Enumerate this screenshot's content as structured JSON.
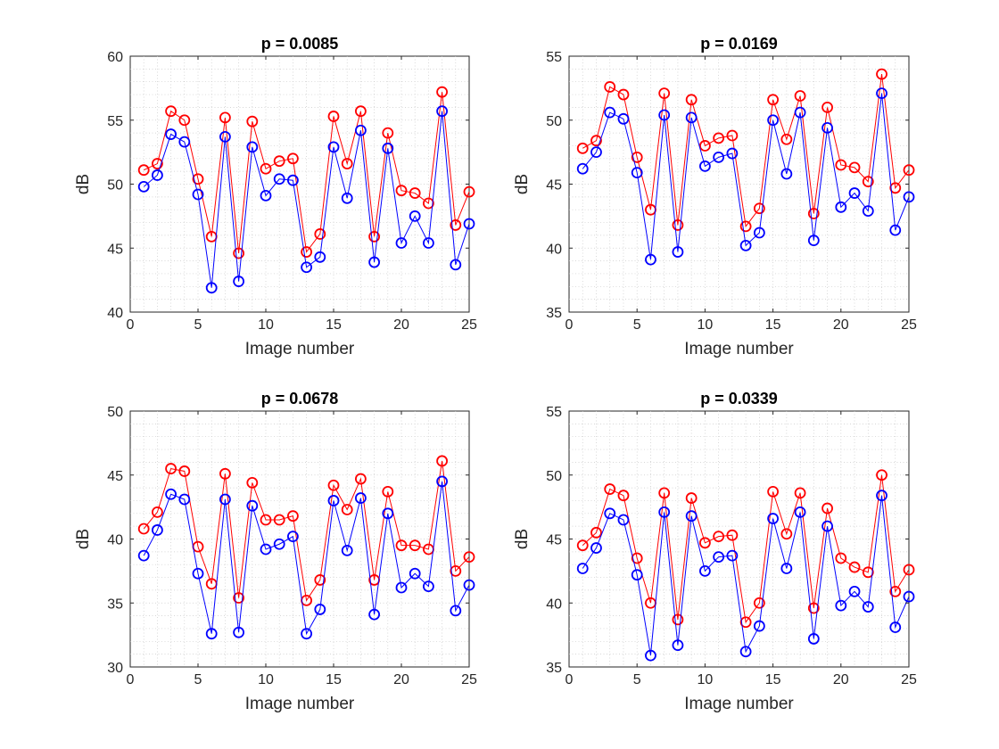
{
  "figure": {
    "colors": {
      "series_a": "#ff0000",
      "series_b": "#0000ff",
      "axis": "#262626",
      "grid": "#c9c9c9"
    }
  },
  "chart_data": [
    {
      "type": "line",
      "title": "p = 0.0085",
      "xlabel": "Image number",
      "ylabel": "dB",
      "xlim": [
        0,
        25
      ],
      "ylim": [
        40,
        60
      ],
      "xticks": [
        0,
        5,
        10,
        15,
        20,
        25
      ],
      "yticks": [
        40,
        45,
        50,
        55,
        60
      ],
      "grid": true,
      "x": [
        1,
        2,
        3,
        4,
        5,
        6,
        7,
        8,
        9,
        10,
        11,
        12,
        13,
        14,
        15,
        16,
        17,
        18,
        19,
        20,
        21,
        22,
        23,
        24,
        25
      ],
      "series": [
        {
          "name": "red",
          "color": "#ff0000",
          "marker": "circle",
          "values": [
            51.1,
            51.6,
            55.7,
            55.0,
            50.4,
            45.9,
            55.2,
            44.6,
            54.9,
            51.2,
            51.8,
            52.0,
            44.7,
            46.1,
            55.3,
            51.6,
            55.7,
            45.9,
            54.0,
            49.5,
            49.3,
            48.5,
            57.2,
            46.8,
            49.4
          ]
        },
        {
          "name": "blue",
          "color": "#0000ff",
          "marker": "circle",
          "values": [
            49.8,
            50.7,
            53.9,
            53.3,
            49.2,
            41.9,
            53.7,
            42.4,
            52.9,
            49.1,
            50.4,
            50.3,
            43.5,
            44.3,
            52.9,
            48.9,
            54.2,
            43.9,
            52.8,
            45.4,
            47.5,
            45.4,
            55.7,
            43.7,
            46.9
          ]
        }
      ]
    },
    {
      "type": "line",
      "title": "p = 0.0169",
      "xlabel": "Image number",
      "ylabel": "dB",
      "xlim": [
        0,
        25
      ],
      "ylim": [
        35,
        55
      ],
      "xticks": [
        0,
        5,
        10,
        15,
        20,
        25
      ],
      "yticks": [
        35,
        40,
        45,
        50,
        55
      ],
      "grid": true,
      "x": [
        1,
        2,
        3,
        4,
        5,
        6,
        7,
        8,
        9,
        10,
        11,
        12,
        13,
        14,
        15,
        16,
        17,
        18,
        19,
        20,
        21,
        22,
        23,
        24,
        25
      ],
      "series": [
        {
          "name": "red",
          "color": "#ff0000",
          "marker": "circle",
          "values": [
            47.8,
            48.4,
            52.6,
            52.0,
            47.1,
            43.0,
            52.1,
            41.8,
            51.6,
            48.0,
            48.6,
            48.8,
            41.7,
            43.1,
            51.6,
            48.5,
            51.9,
            42.7,
            51.0,
            46.5,
            46.3,
            45.2,
            53.6,
            44.7,
            46.1
          ]
        },
        {
          "name": "blue",
          "color": "#0000ff",
          "marker": "circle",
          "values": [
            46.2,
            47.5,
            50.6,
            50.1,
            45.9,
            39.1,
            50.4,
            39.7,
            50.2,
            46.4,
            47.1,
            47.4,
            40.2,
            41.2,
            50.0,
            45.8,
            50.6,
            40.6,
            49.4,
            43.2,
            44.3,
            42.9,
            52.1,
            41.4,
            44.0
          ]
        }
      ]
    },
    {
      "type": "line",
      "title": "p = 0.0678",
      "xlabel": "Image number",
      "ylabel": "dB",
      "xlim": [
        0,
        25
      ],
      "ylim": [
        30,
        50
      ],
      "xticks": [
        0,
        5,
        10,
        15,
        20,
        25
      ],
      "yticks": [
        30,
        35,
        40,
        45,
        50
      ],
      "grid": true,
      "x": [
        1,
        2,
        3,
        4,
        5,
        6,
        7,
        8,
        9,
        10,
        11,
        12,
        13,
        14,
        15,
        16,
        17,
        18,
        19,
        20,
        21,
        22,
        23,
        24,
        25
      ],
      "series": [
        {
          "name": "red",
          "color": "#ff0000",
          "marker": "circle",
          "values": [
            40.8,
            42.1,
            45.5,
            45.3,
            39.4,
            36.5,
            45.1,
            35.4,
            44.4,
            41.5,
            41.5,
            41.8,
            35.2,
            36.8,
            44.2,
            42.3,
            44.7,
            36.8,
            43.7,
            39.5,
            39.5,
            39.2,
            46.1,
            37.5,
            38.6
          ]
        },
        {
          "name": "blue",
          "color": "#0000ff",
          "marker": "circle",
          "values": [
            38.7,
            40.7,
            43.5,
            43.1,
            37.3,
            32.6,
            43.1,
            32.7,
            42.6,
            39.2,
            39.6,
            40.2,
            32.6,
            34.5,
            43.0,
            39.1,
            43.2,
            34.1,
            42.0,
            36.2,
            37.3,
            36.3,
            44.5,
            34.4,
            36.4
          ]
        }
      ]
    },
    {
      "type": "line",
      "title": "p = 0.0339",
      "xlabel": "Image number",
      "ylabel": "dB",
      "xlim": [
        0,
        25
      ],
      "ylim": [
        35,
        55
      ],
      "xticks": [
        0,
        5,
        10,
        15,
        20,
        25
      ],
      "yticks": [
        35,
        40,
        45,
        50,
        55
      ],
      "grid": true,
      "x": [
        1,
        2,
        3,
        4,
        5,
        6,
        7,
        8,
        9,
        10,
        11,
        12,
        13,
        14,
        15,
        16,
        17,
        18,
        19,
        20,
        21,
        22,
        23,
        24,
        25
      ],
      "series": [
        {
          "name": "red",
          "color": "#ff0000",
          "marker": "circle",
          "values": [
            44.5,
            45.5,
            48.9,
            48.4,
            43.5,
            40.0,
            48.6,
            38.7,
            48.2,
            44.7,
            45.2,
            45.3,
            38.5,
            40.0,
            48.7,
            45.4,
            48.6,
            39.6,
            47.4,
            43.5,
            42.8,
            42.4,
            50.0,
            40.9,
            42.6
          ]
        },
        {
          "name": "blue",
          "color": "#0000ff",
          "marker": "circle",
          "values": [
            42.7,
            44.3,
            47.0,
            46.5,
            42.2,
            35.9,
            47.1,
            36.7,
            46.8,
            42.5,
            43.6,
            43.7,
            36.2,
            38.2,
            46.6,
            42.7,
            47.1,
            37.2,
            46.0,
            39.8,
            40.9,
            39.7,
            48.4,
            38.1,
            40.5
          ]
        }
      ]
    }
  ]
}
